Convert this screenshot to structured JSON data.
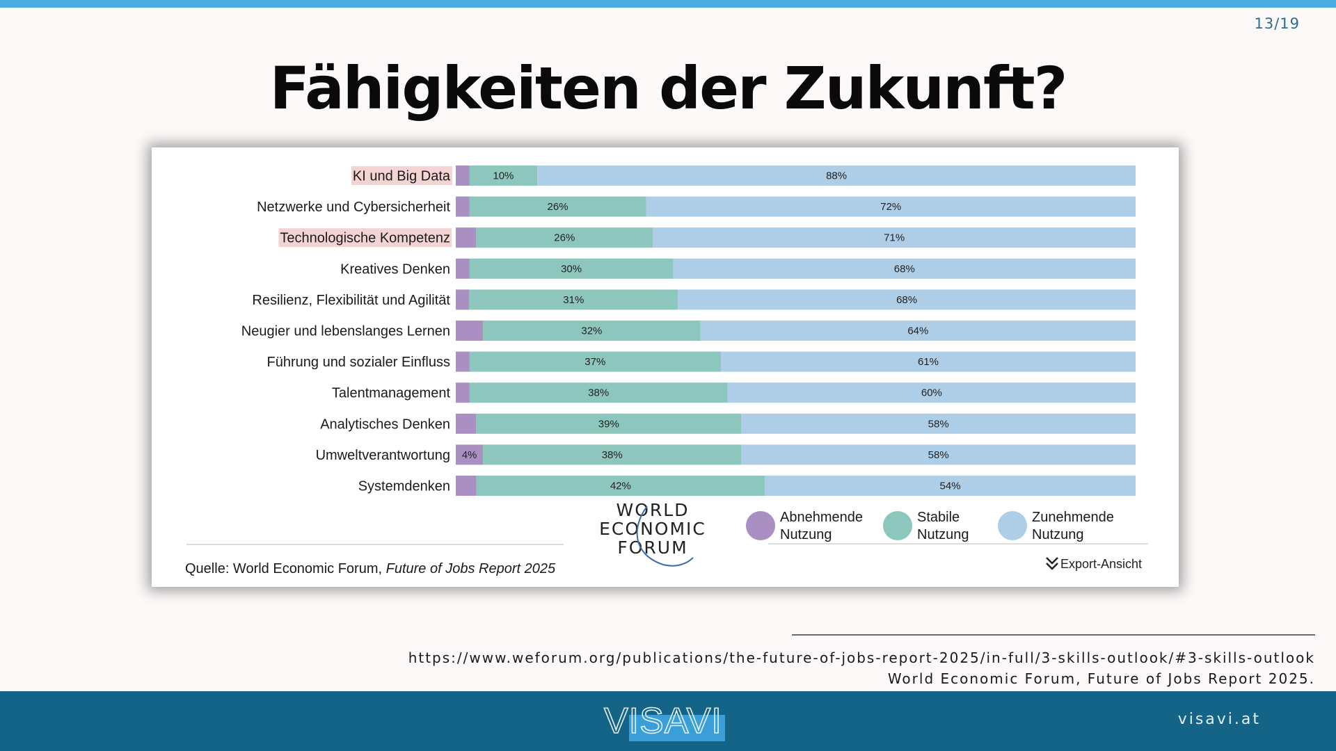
{
  "page_number": "13/19",
  "title": "Fähigkeiten der Zukunft?",
  "chart_data": {
    "type": "bar",
    "stacked": true,
    "orientation": "horizontal",
    "categories": [
      "KI und Big Data",
      "Netzwerke und Cybersicherheit",
      "Technologische Kompetenz",
      "Kreatives Denken",
      "Resilienz, Flexibilität und Agilität",
      "Neugier und lebenslanges Lernen",
      "Führung und sozialer Einfluss",
      "Talentmanagement",
      "Analytisches Denken",
      "Umweltverantwortung",
      "Systemdenken"
    ],
    "highlighted_categories": [
      "KI und Big Data",
      "Technologische Kompetenz"
    ],
    "highlight_color": "#f4d3d3",
    "series": [
      {
        "name": "Abnehmende Nutzung",
        "color": "#a98fc2",
        "values": [
          2,
          2,
          3,
          2,
          2,
          4,
          2,
          2,
          3,
          4,
          3
        ],
        "labels": [
          "",
          "",
          "",
          "",
          "",
          "",
          "",
          "",
          "",
          "4%",
          ""
        ]
      },
      {
        "name": "Stabile Nutzung",
        "color": "#8cc6bc",
        "values": [
          10,
          26,
          26,
          30,
          31,
          32,
          37,
          38,
          39,
          38,
          42
        ],
        "labels": [
          "10%",
          "26%",
          "26%",
          "30%",
          "31%",
          "32%",
          "37%",
          "38%",
          "39%",
          "38%",
          "42%"
        ]
      },
      {
        "name": "Zunehmende Nutzung",
        "color": "#aecde6",
        "values": [
          88,
          72,
          71,
          68,
          68,
          64,
          61,
          60,
          58,
          58,
          54
        ],
        "labels": [
          "88%",
          "72%",
          "71%",
          "68%",
          "68%",
          "64%",
          "61%",
          "60%",
          "58%",
          "58%",
          "54%"
        ]
      }
    ],
    "xlim": [
      0,
      100
    ],
    "legend_placement": "bottom-right"
  },
  "legend": [
    {
      "line1": "Abnehmende",
      "line2": "Nutzung",
      "color": "#a98fc2"
    },
    {
      "line1": "Stabile",
      "line2": "Nutzung",
      "color": "#8cc6bc"
    },
    {
      "line1": "Zunehmende",
      "line2": "Nutzung",
      "color": "#aecde6"
    }
  ],
  "chart_source": {
    "prefix": "Quelle: World Economic Forum, ",
    "title": "Future of Jobs Report 2025"
  },
  "wef_logo": {
    "line1": "WORLD",
    "line2": "ECONOMIC",
    "line3": "FORUM"
  },
  "export_label": "Export-Ansicht",
  "source_url": "https://www.weforum.org/publications/the-future-of-jobs-report-2025/in-full/3-skills-outlook/#3-skills-outlook",
  "source_ref": "World Economic Forum, Future of Jobs Report 2025.",
  "footer": {
    "logo_text": "VISAVI",
    "url": "visavi.at"
  }
}
